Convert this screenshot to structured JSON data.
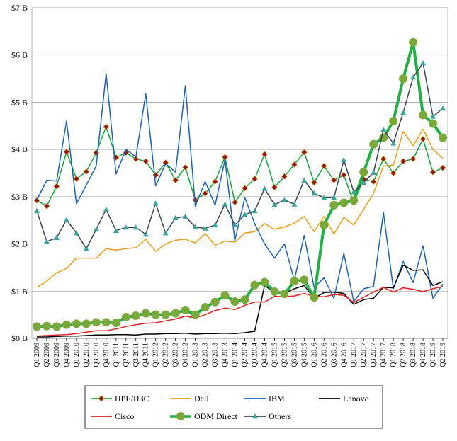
{
  "chart_data": {
    "type": "line",
    "title": "",
    "xlabel": "",
    "ylabel": "",
    "ylim": [
      0,
      7
    ],
    "y_ticks": [
      "$0 B",
      "$1 B",
      "$2 B",
      "$3 B",
      "$4 B",
      "$5 B",
      "$6 B",
      "$7 B"
    ],
    "grid": "horizontal",
    "legend_position": "bottom",
    "categories": [
      "Q1 2009",
      "Q2 2009",
      "Q3 2009",
      "Q4 2009",
      "Q1 2010",
      "Q2 2010",
      "Q3 2010",
      "Q4 2010",
      "Q1 2011",
      "Q2 2011",
      "Q3 2011",
      "Q4 2011",
      "Q1 2012",
      "Q2 2012",
      "Q3 2012",
      "Q4 2012",
      "Q1 2013",
      "Q2 2013",
      "Q3 2013",
      "Q4 2013",
      "Q1 2014",
      "Q2 2014",
      "Q3 2014",
      "Q4 2014",
      "Q1 2015",
      "Q2 2015",
      "Q3 2015",
      "Q4 2015",
      "Q1 2016",
      "Q2 2016",
      "Q3 2016",
      "Q4 2016",
      "Q1 2017",
      "Q2 2017",
      "Q3 2017",
      "Q4 2017",
      "Q1 2018",
      "Q2 2018",
      "Q3 2018",
      "Q4 2018",
      "Q1 2019",
      "Q2 2019"
    ],
    "series": [
      {
        "name": "HPE/H3C",
        "color": "#1aa33a",
        "marker": "diamond",
        "marker_color": "#8b1a1a",
        "width": 1.5,
        "values": [
          2.92,
          2.8,
          3.22,
          3.95,
          3.38,
          3.53,
          3.93,
          4.48,
          3.83,
          3.93,
          3.8,
          3.75,
          3.46,
          3.72,
          3.35,
          3.62,
          2.93,
          3.07,
          3.32,
          3.84,
          2.88,
          3.18,
          3.38,
          3.9,
          3.2,
          3.43,
          3.68,
          3.94,
          3.3,
          3.65,
          3.35,
          3.46,
          2.87,
          3.37,
          3.32,
          3.8,
          3.5,
          3.75,
          3.8,
          4.22,
          3.52,
          3.61
        ]
      },
      {
        "name": "Dell",
        "color": "#e8a020",
        "marker": "none",
        "width": 1.5,
        "values": [
          1.08,
          1.21,
          1.39,
          1.48,
          1.7,
          1.7,
          1.7,
          1.9,
          1.87,
          1.9,
          1.92,
          2.1,
          1.84,
          2.0,
          2.08,
          2.1,
          2.02,
          2.22,
          1.97,
          2.06,
          2.04,
          2.23,
          2.26,
          2.43,
          2.31,
          2.36,
          2.44,
          2.58,
          2.26,
          2.58,
          2.21,
          2.56,
          2.4,
          2.73,
          3.07,
          3.65,
          3.67,
          4.38,
          4.08,
          4.43,
          4.0,
          3.81
        ]
      },
      {
        "name": "IBM",
        "color": "#1f63b0",
        "marker": "none",
        "width": 1.5,
        "values": [
          2.93,
          3.35,
          3.33,
          4.6,
          2.85,
          3.25,
          3.65,
          5.61,
          3.48,
          4.0,
          3.84,
          5.18,
          3.23,
          3.7,
          3.52,
          5.35,
          2.8,
          3.32,
          2.82,
          3.78,
          2.07,
          2.98,
          2.43,
          2.0,
          1.7,
          2.0,
          1.23,
          2.18,
          1.08,
          1.28,
          0.85,
          1.8,
          0.78,
          1.05,
          1.1,
          2.66,
          1.05,
          1.63,
          1.18,
          1.96,
          0.85,
          1.15
        ]
      },
      {
        "name": "Lenovo",
        "color": "#000000",
        "marker": "none",
        "width": 1.5,
        "values": [
          0.03,
          0.03,
          0.04,
          0.05,
          0.05,
          0.06,
          0.07,
          0.07,
          0.08,
          0.08,
          0.07,
          0.09,
          0.09,
          0.1,
          0.1,
          0.11,
          0.09,
          0.1,
          0.1,
          0.11,
          0.1,
          0.12,
          0.15,
          1.12,
          0.97,
          0.95,
          1.05,
          1.12,
          0.85,
          0.97,
          0.98,
          0.95,
          0.72,
          0.82,
          0.85,
          1.08,
          1.07,
          1.55,
          1.44,
          1.45,
          1.12,
          1.2
        ]
      },
      {
        "name": "Cisco",
        "color": "#e02020",
        "marker": "none",
        "width": 1.5,
        "values": [
          0.05,
          0.06,
          0.07,
          0.08,
          0.1,
          0.13,
          0.16,
          0.16,
          0.2,
          0.25,
          0.29,
          0.32,
          0.33,
          0.37,
          0.41,
          0.47,
          0.43,
          0.5,
          0.59,
          0.64,
          0.61,
          0.7,
          0.77,
          0.77,
          0.89,
          0.88,
          0.9,
          0.95,
          0.89,
          0.88,
          0.93,
          0.91,
          0.76,
          0.87,
          0.98,
          1.08,
          0.98,
          1.07,
          1.04,
          0.99,
          1.05,
          1.1
        ]
      },
      {
        "name": "ODM Direct",
        "color": "#22b045",
        "marker": "circle",
        "marker_color": "#7aa83a",
        "width": 4,
        "values": [
          0.25,
          0.26,
          0.25,
          0.29,
          0.31,
          0.31,
          0.34,
          0.34,
          0.33,
          0.45,
          0.48,
          0.53,
          0.5,
          0.5,
          0.53,
          0.6,
          0.5,
          0.66,
          0.77,
          0.91,
          0.78,
          0.82,
          1.13,
          1.19,
          0.99,
          0.94,
          1.21,
          1.24,
          0.87,
          2.4,
          2.82,
          2.87,
          2.92,
          3.52,
          4.11,
          4.25,
          4.6,
          5.5,
          6.27,
          4.73,
          4.55,
          4.25
        ]
      },
      {
        "name": "Others",
        "color": "#3a4454",
        "marker": "triangle",
        "marker_color": "#3aa39a",
        "width": 1.5,
        "values": [
          2.7,
          2.05,
          2.13,
          2.51,
          2.23,
          1.9,
          2.31,
          2.73,
          2.28,
          2.35,
          2.35,
          2.2,
          2.86,
          2.23,
          2.55,
          2.58,
          2.36,
          2.33,
          2.4,
          2.84,
          2.4,
          2.62,
          2.7,
          3.17,
          2.83,
          2.93,
          2.84,
          3.35,
          3.07,
          2.98,
          2.98,
          3.78,
          3.1,
          3.3,
          3.51,
          4.42,
          4.13,
          4.78,
          5.53,
          5.83,
          4.7,
          4.87
        ]
      }
    ]
  }
}
